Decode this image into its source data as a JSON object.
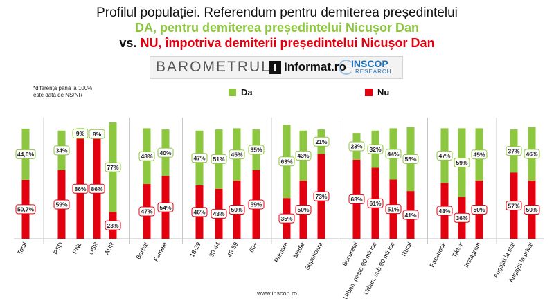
{
  "header": {
    "title": "Profilul populației. Referendum pentru demiterea președintelui",
    "da_line": "DA, pentru demiterea președintelui Nicușor Dan",
    "vs_label": "vs.",
    "nu_line": "NU, împotriva demiterii președintelui Nicușor Dan"
  },
  "logos": {
    "barometrul": "BAROMETRUL",
    "informat": "Informat.ro",
    "inscop": "INSCOP",
    "research": "RESEARCH"
  },
  "footnote": {
    "line1": "*diferența până la 100%",
    "line2": "este dată de NS/NR"
  },
  "legend": {
    "da": "Da",
    "nu": "Nu"
  },
  "colors": {
    "da": "#8dc63f",
    "nu": "#e3000f"
  },
  "footer": {
    "url": "www.inscop.ro"
  },
  "chart_data": {
    "type": "bar",
    "stacked": true,
    "categories": [
      "Total",
      "PSD",
      "PNL",
      "USR",
      "AUR",
      "Barbat",
      "Femeie",
      "18-29",
      "30-44",
      "45-59",
      "60+",
      "Primara",
      "Medie",
      "Superioara",
      "Bucuresti",
      "Urban, peste 90 mii loc",
      "Urban, sub 90 mii loc",
      "Rural",
      "Facebook",
      "Tiktok",
      "Instagram",
      "Angajat la stat",
      "Angajat la privat"
    ],
    "groups": [
      [
        "Total"
      ],
      [
        "PSD",
        "PNL",
        "USR",
        "AUR"
      ],
      [
        "Barbat",
        "Femeie"
      ],
      [
        "18-29",
        "30-44",
        "45-59",
        "60+"
      ],
      [
        "Primara",
        "Medie",
        "Superioara"
      ],
      [
        "Bucuresti",
        "Urban, peste 90 mii loc",
        "Urban, sub 90 mii loc",
        "Rural"
      ],
      [
        "Facebook",
        "Tiktok",
        "Instagram"
      ],
      [
        "Angajat la stat",
        "Angajat la privat"
      ]
    ],
    "series": [
      {
        "name": "Nu",
        "values": [
          50.7,
          59,
          86,
          86,
          23,
          47,
          54,
          46,
          43,
          50,
          59,
          35,
          50,
          73,
          68,
          61,
          51,
          41,
          48,
          36,
          50,
          57,
          50
        ],
        "labels": [
          "50,7%",
          "59%",
          "86%",
          "86%",
          "23%",
          "47%",
          "54%",
          "46%",
          "43%",
          "50%",
          "59%",
          "35%",
          "50%",
          "73%",
          "68%",
          "61%",
          "51%",
          "41%",
          "48%",
          "36%",
          "50%",
          "57%",
          "50%"
        ]
      },
      {
        "name": "Da",
        "values": [
          44.0,
          34,
          9,
          8,
          77,
          48,
          40,
          47,
          51,
          45,
          35,
          63,
          43,
          21,
          23,
          32,
          44,
          55,
          47,
          59,
          45,
          37,
          46
        ],
        "labels": [
          "44,0%",
          "34%",
          "9%",
          "8%",
          "77%",
          "48%",
          "40%",
          "47%",
          "51%",
          "45%",
          "35%",
          "63%",
          "43%",
          "21%",
          "23%",
          "32%",
          "44%",
          "55%",
          "47%",
          "59%",
          "45%",
          "37%",
          "46%"
        ]
      }
    ],
    "ylim": [
      0,
      100
    ]
  }
}
